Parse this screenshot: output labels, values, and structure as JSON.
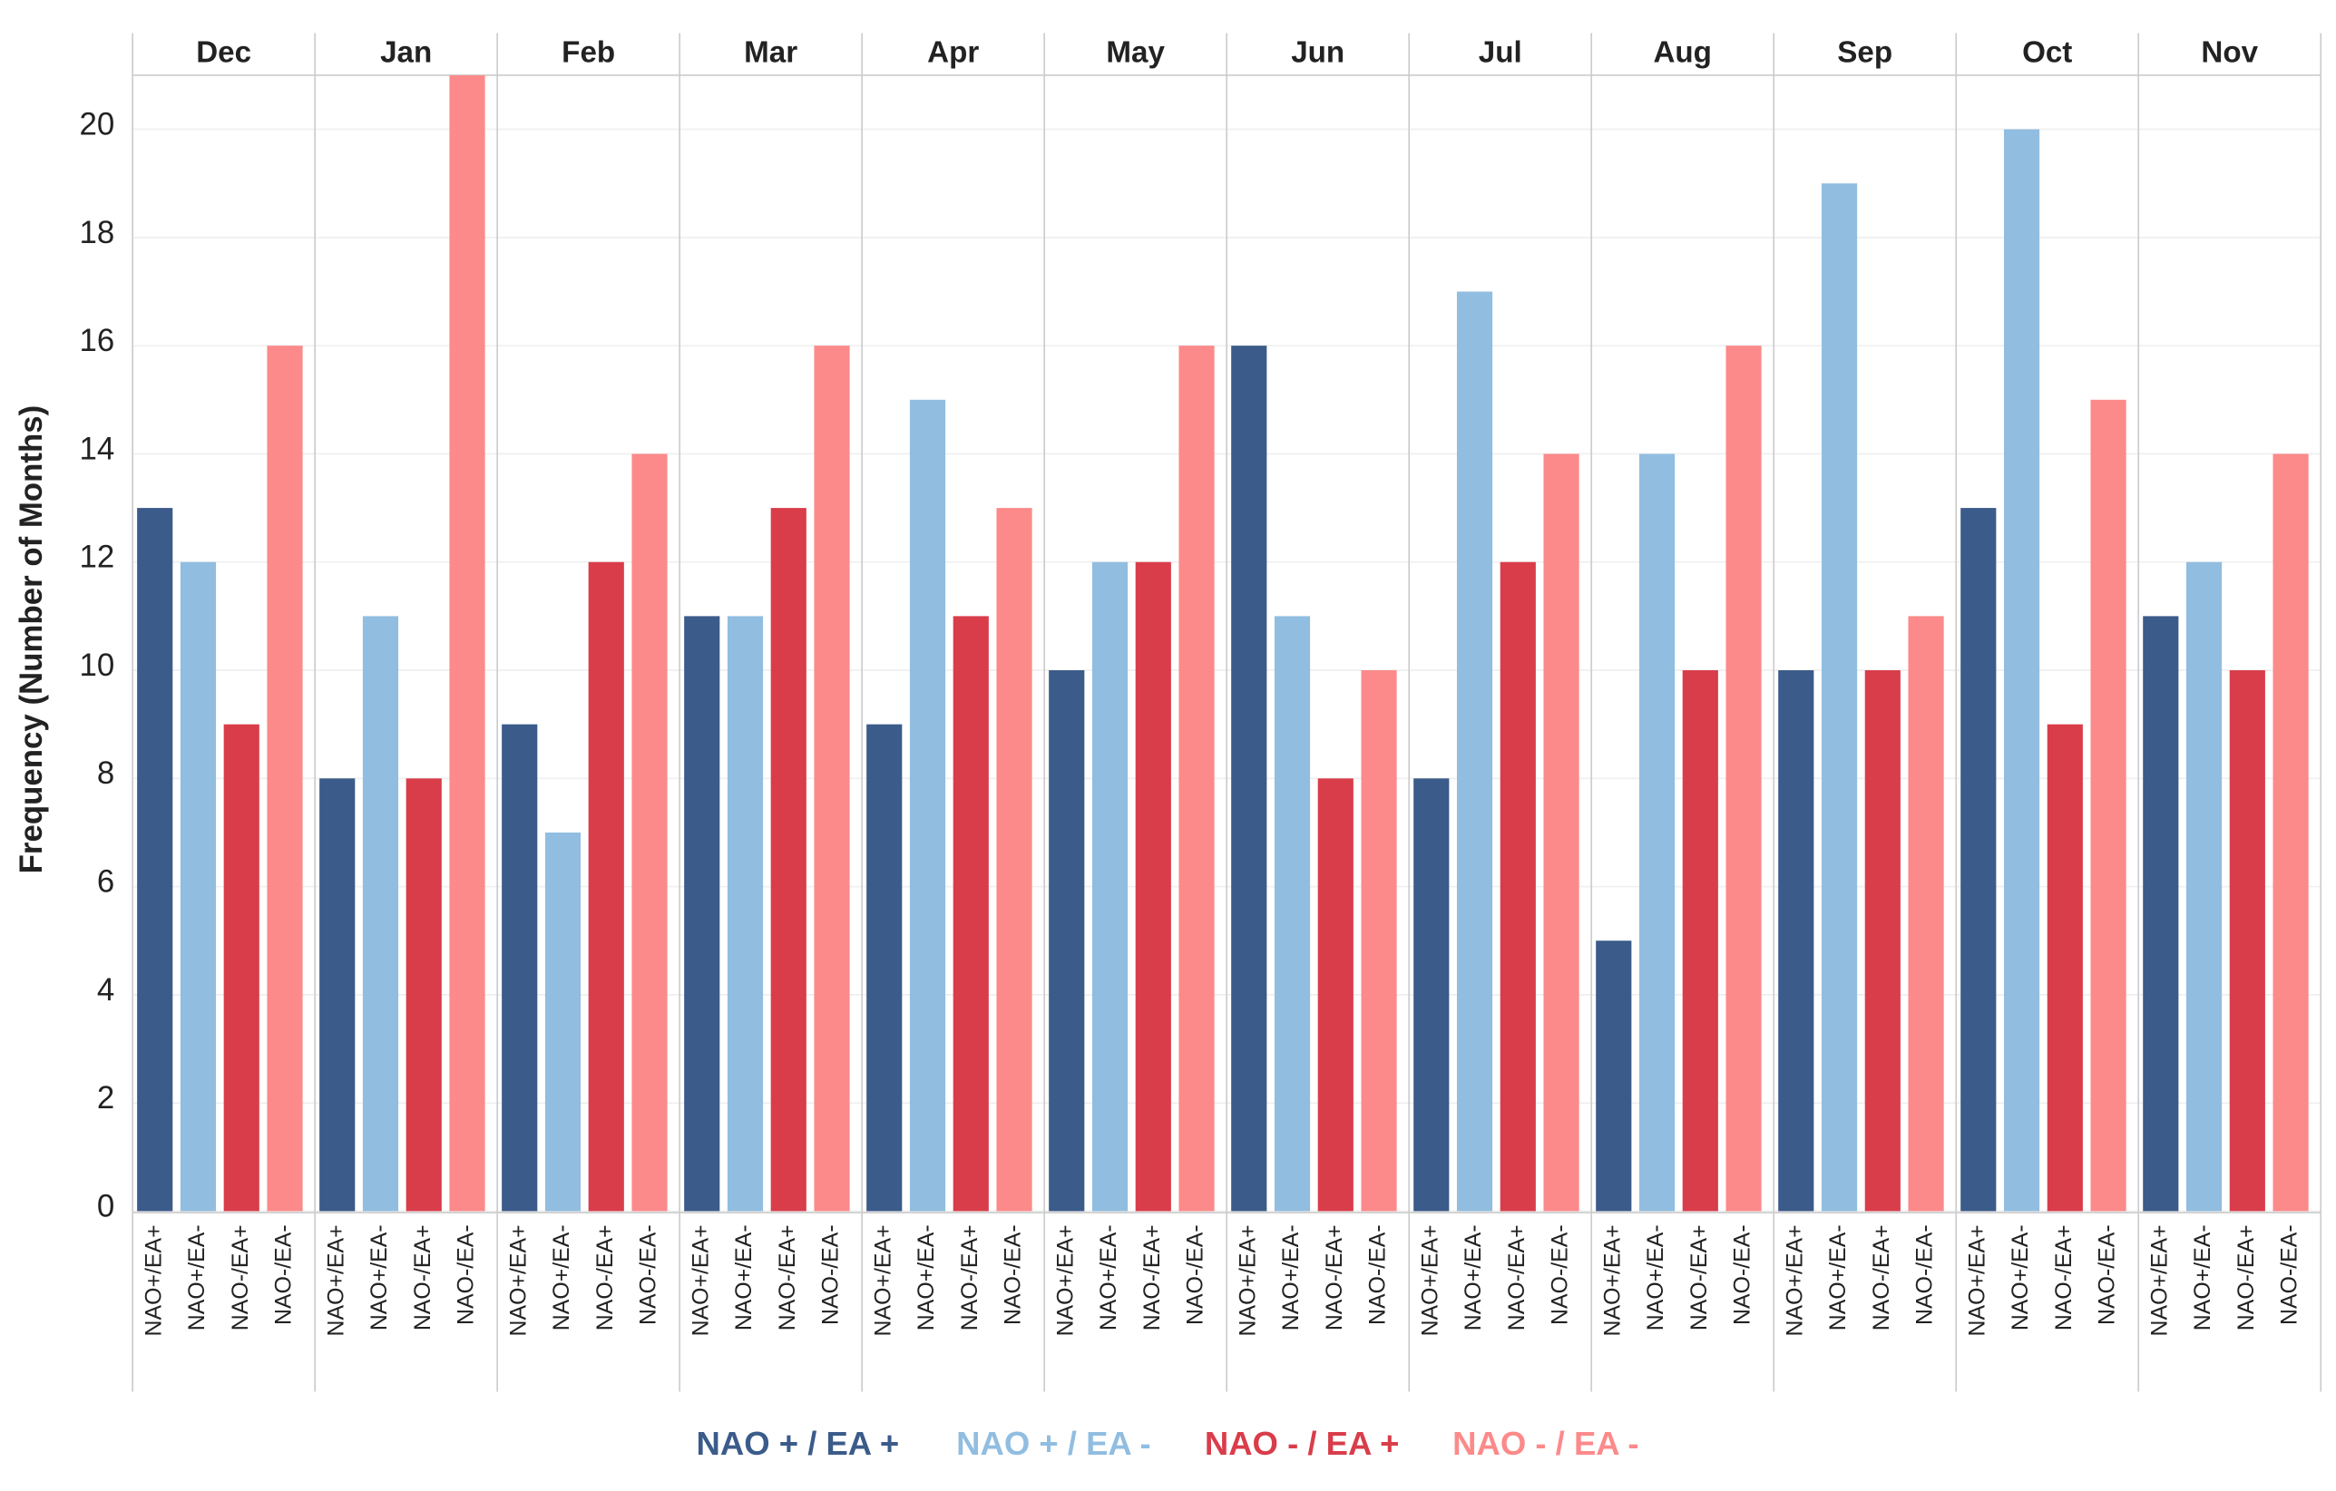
{
  "chart_data": {
    "type": "bar",
    "y_label": "Frequency (Number of Months)",
    "categories": [
      "Dec",
      "Jan",
      "Feb",
      "Mar",
      "Apr",
      "May",
      "Jun",
      "Jul",
      "Aug",
      "Sep",
      "Oct",
      "Nov"
    ],
    "x_labels": [
      "NAO+/EA+",
      "NAO+/EA-",
      "NAO-/EA+",
      "NAO-/EA-"
    ],
    "series": [
      {
        "name": "NAO + / EA +",
        "color": "#3b5b8a",
        "values": [
          13,
          8,
          9,
          11,
          9,
          10,
          16,
          8,
          5,
          10,
          13,
          11
        ]
      },
      {
        "name": "NAO + / EA -",
        "color": "#91bde0",
        "values": [
          12,
          11,
          7,
          11,
          15,
          12,
          11,
          17,
          14,
          19,
          20,
          12
        ]
      },
      {
        "name": "NAO - / EA +",
        "color": "#d93d4a",
        "values": [
          9,
          8,
          12,
          13,
          11,
          12,
          8,
          12,
          10,
          10,
          9,
          10
        ]
      },
      {
        "name": "NAO - / EA -",
        "color": "#fc8a8a",
        "values": [
          16,
          21,
          14,
          16,
          13,
          16,
          10,
          14,
          16,
          11,
          15,
          14
        ]
      }
    ],
    "ylim": [
      0,
      21
    ],
    "yticks": [
      0,
      2,
      4,
      6,
      8,
      10,
      12,
      14,
      16,
      18,
      20
    ],
    "grid": true,
    "legend": "bottom"
  }
}
